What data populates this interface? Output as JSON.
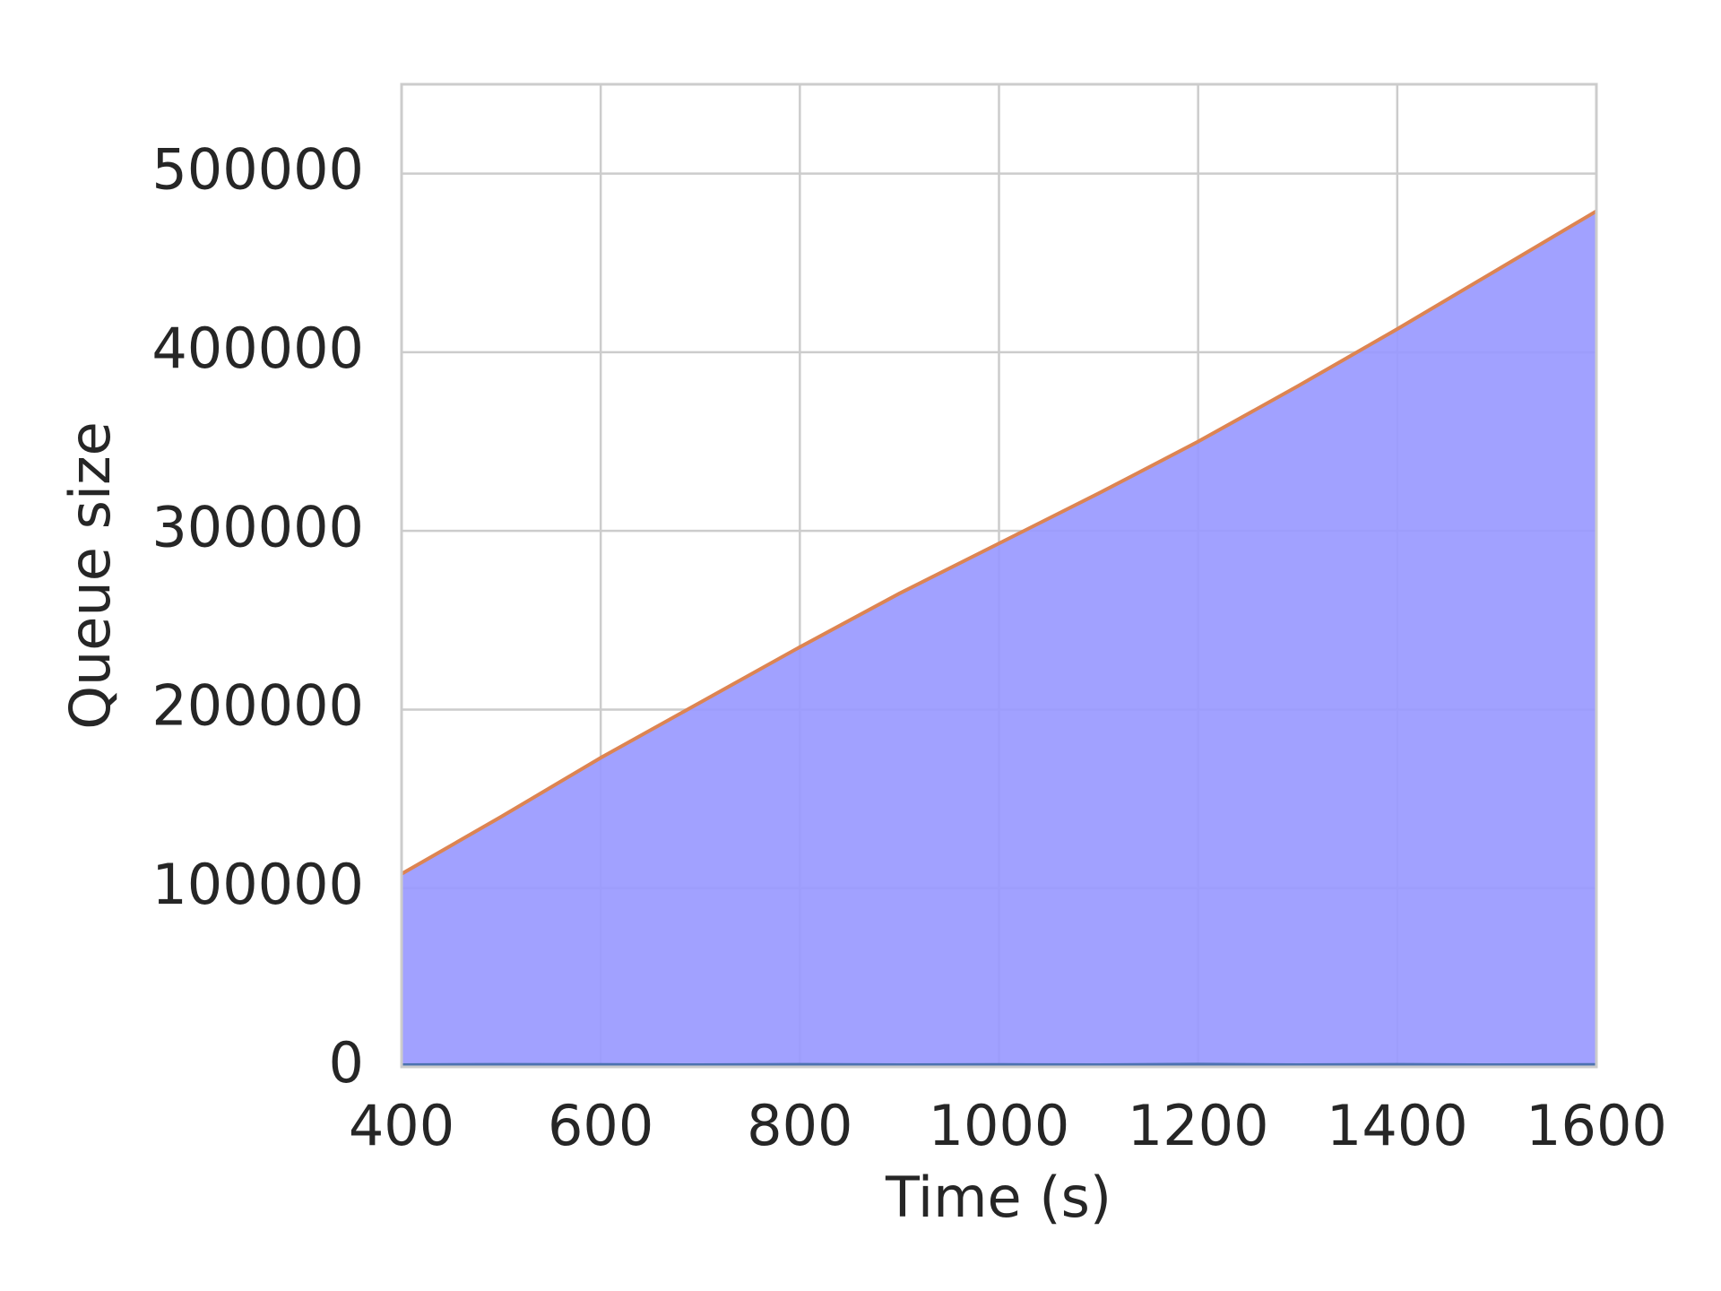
{
  "chart_data": {
    "type": "line",
    "xlabel": "Time (s)",
    "ylabel": "Queue size",
    "x": [
      400,
      500,
      600,
      700,
      800,
      900,
      1000,
      1100,
      1200,
      1300,
      1400,
      1500,
      1600
    ],
    "series": [
      {
        "color": "#dd8452",
        "fill": "#9999ff",
        "values": [
          108000,
          140000,
          173000,
          204000,
          235000,
          265000,
          293000,
          321000,
          350000,
          381000,
          413000,
          446000,
          479000
        ]
      },
      {
        "color": "#4c72b0",
        "values": [
          1000,
          1200,
          1100,
          1000,
          1200,
          1000,
          1100,
          1000,
          1300,
          1000,
          1200,
          1000,
          1100
        ]
      }
    ],
    "xlim": [
      400,
      1600
    ],
    "xticks": [
      400,
      600,
      800,
      1000,
      1200,
      1400,
      1600
    ],
    "ylim": [
      0,
      550000
    ],
    "yticks": [
      0,
      100000,
      200000,
      300000,
      400000,
      500000
    ],
    "grid": true
  }
}
